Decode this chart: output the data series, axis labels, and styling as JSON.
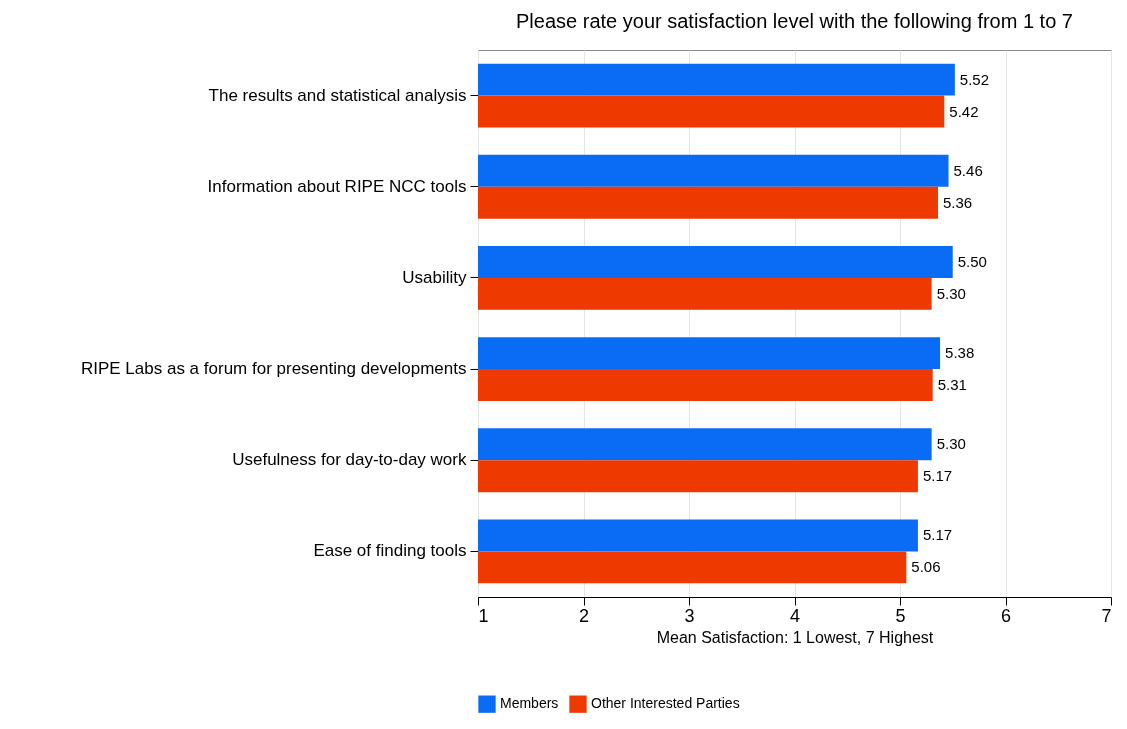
{
  "chart_data": {
    "type": "bar",
    "orientation": "horizontal",
    "title": "Please rate your satisfaction level with the following from 1 to 7",
    "xlabel": "Mean Satisfaction: 1 Lowest, 7 Highest",
    "categories": [
      "The results and statistical analysis",
      "Information about RIPE NCC tools",
      "Usability",
      "RIPE Labs as a forum for presenting developments",
      "Usefulness for day-to-day work",
      "Ease of finding tools"
    ],
    "series": [
      {
        "name": "Members",
        "color": "#0a6cf5",
        "values": [
          5.52,
          5.46,
          5.5,
          5.38,
          5.3,
          5.17
        ],
        "value_labels": [
          "5.52",
          "5.46",
          "5.50",
          "5.38",
          "5.30",
          "5.17"
        ]
      },
      {
        "name": "Other Interested Parties",
        "color": "#ee3a00",
        "values": [
          5.42,
          5.36,
          5.3,
          5.31,
          5.17,
          5.06
        ],
        "value_labels": [
          "5.42",
          "5.36",
          "5.30",
          "5.31",
          "5.17",
          "5.06"
        ]
      }
    ],
    "xlim": [
      1,
      7
    ],
    "xticks": [
      1,
      2,
      3,
      4,
      5,
      6,
      7
    ],
    "grid": "x",
    "legend": "bottom"
  }
}
